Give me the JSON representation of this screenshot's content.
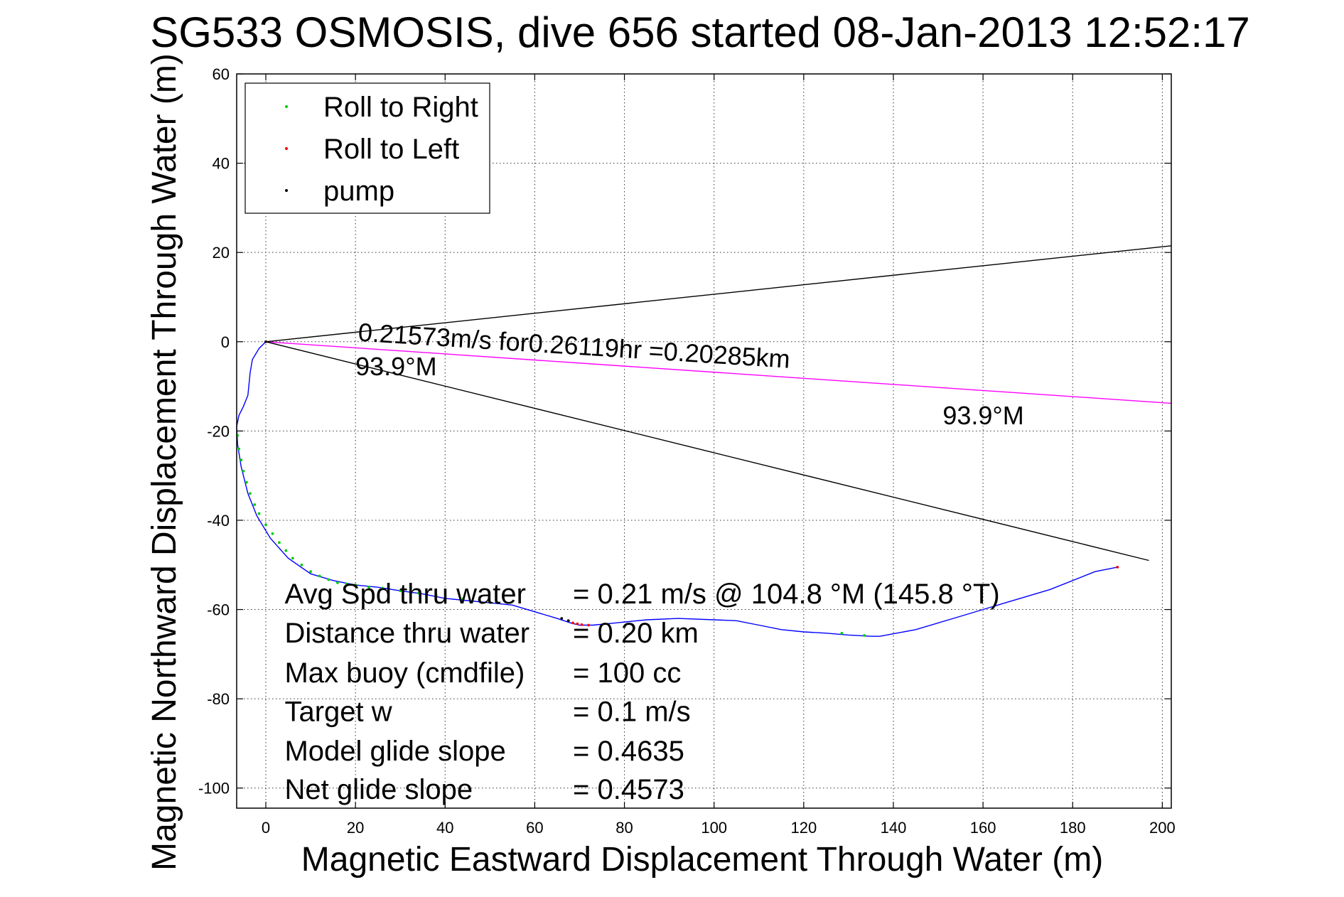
{
  "chart_data": {
    "type": "line",
    "title": "SG533 OSMOSIS, dive 656 started 08-Jan-2013 12:52:17",
    "xlabel": "Magnetic Eastward Displacement Through Water (m)",
    "ylabel": "Magnetic Northward Displacement Through Water (m)",
    "xlim": [
      -6.5,
      202
    ],
    "ylim": [
      -104.5,
      60
    ],
    "xticks": [
      0,
      20,
      40,
      60,
      80,
      100,
      120,
      140,
      160,
      180,
      200
    ],
    "yticks": [
      60,
      40,
      20,
      0,
      -20,
      -40,
      -60,
      -80,
      -100
    ],
    "grid": true,
    "legend": {
      "position": "top-left",
      "entries": [
        {
          "label": "Roll to Right",
          "color": "#00cc00"
        },
        {
          "label": "Roll to Left",
          "color": "#ff0000"
        },
        {
          "label": "pump",
          "color": "#000000"
        }
      ]
    },
    "series": [
      {
        "name": "track",
        "color": "#0000ff",
        "x": [
          0,
          -1.5,
          -3,
          -3.5,
          -4,
          -5,
          -6,
          -6.5,
          -6.3,
          -5.5,
          -4,
          -2,
          1,
          5,
          10,
          15,
          20,
          25,
          30,
          35,
          40,
          45,
          50,
          55,
          60,
          65,
          68,
          70,
          73,
          78,
          85,
          92,
          100,
          105,
          110,
          115,
          120,
          125,
          130,
          135,
          137,
          145,
          155,
          165,
          175,
          185,
          190
        ],
        "y": [
          0,
          -1.5,
          -4,
          -7,
          -12,
          -14.5,
          -16.5,
          -19,
          -23,
          -28,
          -34,
          -39,
          -44,
          -48.5,
          -52,
          -53.5,
          -54.5,
          -55,
          -55.8,
          -56.5,
          -57.5,
          -58,
          -58.5,
          -59,
          -60.5,
          -62,
          -63,
          -63.5,
          -63.5,
          -63,
          -62.3,
          -62,
          -62.3,
          -62.5,
          -63.5,
          -64.5,
          -65,
          -65.3,
          -65.7,
          -66,
          -66,
          -64.5,
          -61.5,
          -58.5,
          -55.5,
          -51.5,
          -50.5
        ]
      },
      {
        "name": "current",
        "color": "#ff00ff",
        "x": [
          0,
          202
        ],
        "y": [
          0,
          -13.8
        ]
      },
      {
        "name": "heading upper",
        "color": "#000000",
        "x": [
          0,
          202
        ],
        "y": [
          0,
          21.5
        ]
      },
      {
        "name": "heading lower",
        "color": "#000000",
        "x": [
          0,
          197
        ],
        "y": [
          0,
          -49
        ]
      }
    ],
    "marker_series": [
      {
        "name": "Roll to Right",
        "color": "#00cc00",
        "x": [
          -6.3,
          -6,
          -5.5,
          -5,
          -4.3,
          -3.5,
          -2.5,
          -1.5,
          0,
          1.5,
          3,
          4.5,
          6,
          8,
          10,
          12,
          14,
          16,
          18,
          20,
          23,
          26,
          30,
          34,
          38,
          44,
          50,
          128.5,
          133.5
        ],
        "y": [
          -21,
          -24,
          -26.5,
          -29,
          -31.5,
          -34,
          -36.5,
          -38.5,
          -41,
          -43,
          -45,
          -46.8,
          -48.5,
          -50,
          -51.5,
          -52.5,
          -53.3,
          -54,
          -54.3,
          -54.5,
          -55,
          -55.2,
          -55.8,
          -56.3,
          -56.8,
          -57.6,
          -58.4,
          -65.3,
          -65.8
        ]
      },
      {
        "name": "Roll to Left",
        "color": "#ff0000",
        "x": [
          0,
          67.5,
          68.5,
          69.5,
          70.5,
          72,
          190
        ],
        "y": [
          0,
          -62.5,
          -63,
          -63.2,
          -63.4,
          -63.5,
          -50.5
        ]
      },
      {
        "name": "pump",
        "color": "#000000",
        "x": [
          0,
          66,
          67.5
        ],
        "y": [
          0,
          -62,
          -62.5
        ]
      }
    ],
    "annotations": [
      {
        "text": "0.21573m/s for0.26119hr =0.20285km",
        "x": 20.5,
        "y": 0.2,
        "rotation_deg": 3.6
      },
      {
        "text": "93.9°M",
        "x": 20,
        "y": -7.5
      },
      {
        "text": "93.9°M",
        "x": 151,
        "y": -18.5
      }
    ],
    "stats": [
      {
        "label": "Avg Spd thru water",
        "value": "=  0.21 m/s @ 104.8 °M (145.8 °T)"
      },
      {
        "label": "Distance thru water",
        "value": "=  0.20 km"
      },
      {
        "label": "Max buoy (cmdfile)",
        "value": "= 100 cc"
      },
      {
        "label": "Target w",
        "value": "= 0.1 m/s"
      },
      {
        "label": "Model glide slope",
        "value": "= 0.4635"
      },
      {
        "label": "Net glide slope",
        "value": "= 0.4573"
      }
    ]
  }
}
